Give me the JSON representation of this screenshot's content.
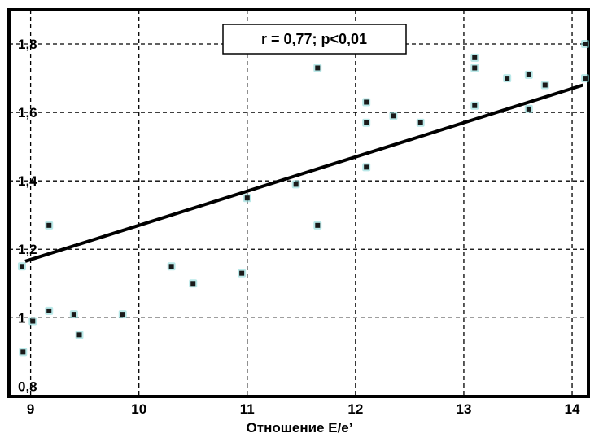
{
  "chart_data": {
    "type": "scatter",
    "title": "",
    "xlabel": "Отношение E/e’",
    "ylabel": "",
    "annotation": "r = 0,77; p<0,01",
    "xlim": [
      8.8,
      14.15
    ],
    "ylim": [
      0.77,
      1.9
    ],
    "x_ticks": [
      9,
      10,
      11,
      12,
      13,
      14
    ],
    "x_tick_labels": [
      "9",
      "10",
      "11",
      "12",
      "13",
      "14"
    ],
    "y_ticks": [
      0.8,
      1.0,
      1.2,
      1.4,
      1.6,
      1.8
    ],
    "y_tick_labels": [
      "0,8",
      "1",
      "1,2",
      "1,4",
      "1,6",
      "1,8"
    ],
    "grid": true,
    "points": [
      {
        "x": 8.92,
        "y": 1.15
      },
      {
        "x": 8.93,
        "y": 0.9
      },
      {
        "x": 9.02,
        "y": 0.99
      },
      {
        "x": 9.17,
        "y": 1.27
      },
      {
        "x": 9.17,
        "y": 1.02
      },
      {
        "x": 9.4,
        "y": 1.01
      },
      {
        "x": 9.45,
        "y": 0.95
      },
      {
        "x": 9.85,
        "y": 1.01
      },
      {
        "x": 10.3,
        "y": 1.15
      },
      {
        "x": 10.5,
        "y": 1.1
      },
      {
        "x": 10.95,
        "y": 1.13
      },
      {
        "x": 11.0,
        "y": 1.35
      },
      {
        "x": 11.45,
        "y": 1.39
      },
      {
        "x": 11.65,
        "y": 1.27
      },
      {
        "x": 11.65,
        "y": 1.73
      },
      {
        "x": 12.1,
        "y": 1.63
      },
      {
        "x": 12.1,
        "y": 1.57
      },
      {
        "x": 12.1,
        "y": 1.44
      },
      {
        "x": 12.35,
        "y": 1.59
      },
      {
        "x": 12.6,
        "y": 1.57
      },
      {
        "x": 13.1,
        "y": 1.76
      },
      {
        "x": 13.1,
        "y": 1.73
      },
      {
        "x": 13.1,
        "y": 1.62
      },
      {
        "x": 13.4,
        "y": 1.7
      },
      {
        "x": 13.6,
        "y": 1.71
      },
      {
        "x": 13.6,
        "y": 1.61
      },
      {
        "x": 13.75,
        "y": 1.68
      },
      {
        "x": 14.12,
        "y": 1.8
      },
      {
        "x": 14.12,
        "y": 1.7
      }
    ],
    "trendline": {
      "x": [
        8.8,
        14.1
      ],
      "y": [
        1.15,
        1.68
      ]
    },
    "colors": {
      "line": "#000000",
      "point": "#1a1a1a",
      "point_glow": "#7fd6d6",
      "grid": "#000000",
      "frame": "#000000"
    }
  }
}
